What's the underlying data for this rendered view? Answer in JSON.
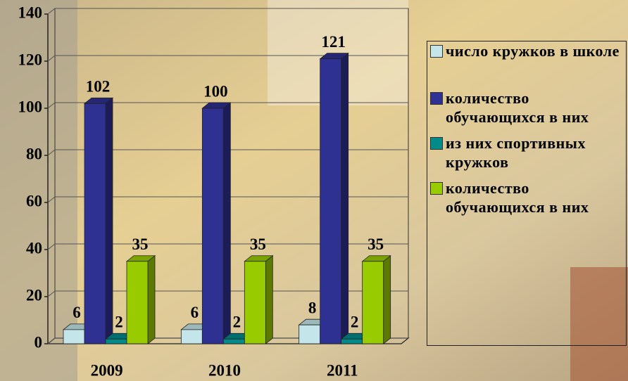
{
  "chart_data": {
    "type": "bar3d",
    "categories": [
      "2009",
      "2010",
      "2011"
    ],
    "series": [
      {
        "name": "число кружков в школе",
        "color": "#c4e6ea",
        "values": [
          6,
          6,
          8
        ]
      },
      {
        "name": "количество обучающихся в них",
        "color": "#2e3192",
        "values": [
          102,
          100,
          121
        ]
      },
      {
        "name": "из них спортивных кружков",
        "color": "#008b8b",
        "values": [
          2,
          2,
          2
        ]
      },
      {
        "name": "количество обучающихся в них",
        "color": "#99cc00",
        "values": [
          35,
          35,
          35
        ]
      }
    ],
    "ylim": [
      0,
      140
    ],
    "yticks": [
      0,
      20,
      40,
      60,
      80,
      100,
      120,
      140
    ],
    "grid": true,
    "legend": "right"
  }
}
